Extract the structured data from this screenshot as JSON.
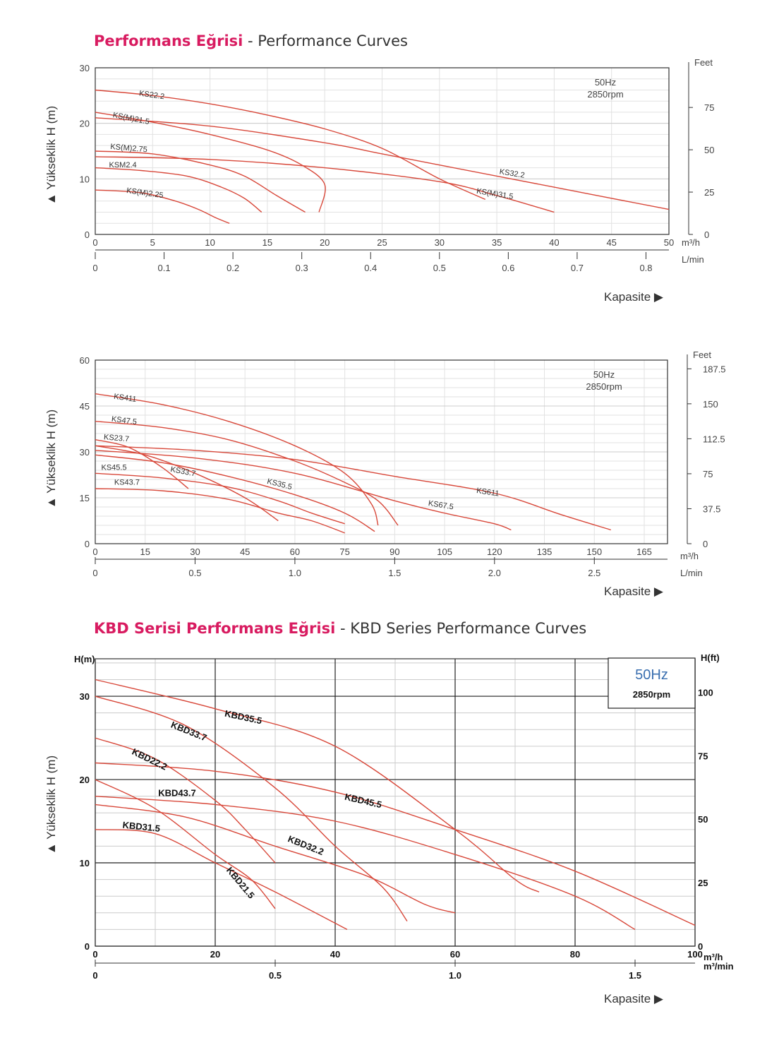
{
  "titles": [
    {
      "tr": "Performans Eğrisi",
      "sep": " - ",
      "en": "Performance Curves"
    },
    {
      "tr": "KBD Serisi Performans Eğrisi",
      "sep": " - ",
      "en": "KBD Series Performance Curves"
    }
  ],
  "kapasite_label": "Kapasite ▶",
  "colors": {
    "curve": "#d8483a",
    "grid": "#cccccc",
    "grid_major": "#222222",
    "accent": "#d81b60",
    "hz_blue": "#3a6fb0"
  },
  "chart_data": [
    {
      "type": "line",
      "ylabel": "▲ Yükseklik H (m)",
      "x_unit": "m³/h",
      "x2_unit": "L/min",
      "y2_unit": "Feet",
      "info": [
        "50Hz",
        "2850rpm"
      ],
      "xlim": [
        0,
        50
      ],
      "ylim": [
        0,
        30
      ],
      "xticks": [
        0,
        5,
        10,
        15,
        20,
        25,
        30,
        35,
        40,
        45,
        50
      ],
      "yticks": [
        0,
        10,
        20,
        30
      ],
      "x2ticks": [
        [
          "0",
          0
        ],
        [
          "0.1",
          6
        ],
        [
          "0.2",
          12
        ],
        [
          "0.3",
          18
        ],
        [
          "0.4",
          24
        ],
        [
          "0.5",
          30
        ],
        [
          "0.6",
          36
        ],
        [
          "0.7",
          42
        ],
        [
          "0.8",
          48
        ]
      ],
      "y2ticks": [
        [
          "0",
          0
        ],
        [
          "25",
          7.62
        ],
        [
          "50",
          15.24
        ],
        [
          "75",
          22.86
        ]
      ],
      "series": [
        {
          "name": "KS22.2",
          "pts": [
            [
              0,
              26
            ],
            [
              5,
              25
            ],
            [
              10,
              23.5
            ],
            [
              15,
              21.5
            ],
            [
              20,
              19
            ],
            [
              25,
              15.5
            ],
            [
              30,
              10
            ],
            [
              34,
              6.3
            ]
          ]
        },
        {
          "name": "KS(M)21.5",
          "pts": [
            [
              0,
              22
            ],
            [
              5,
              20.2
            ],
            [
              10,
              18
            ],
            [
              15,
              15.2
            ],
            [
              18,
              12.5
            ],
            [
              20,
              9
            ],
            [
              19.5,
              4
            ]
          ]
        },
        {
          "name": "KS(M)2.75",
          "pts": [
            [
              0,
              15
            ],
            [
              5,
              14.5
            ],
            [
              10,
              12.5
            ],
            [
              13,
              10.5
            ],
            [
              15.8,
              7
            ],
            [
              18.3,
              4
            ]
          ]
        },
        {
          "name": "KSM2.4",
          "pts": [
            [
              0,
              12
            ],
            [
              4,
              11.5
            ],
            [
              8,
              10.5
            ],
            [
              11,
              8.5
            ],
            [
              13,
              6.5
            ],
            [
              14.5,
              4
            ]
          ]
        },
        {
          "name": "KS(M)2.25",
          "pts": [
            [
              0,
              8
            ],
            [
              4,
              7.5
            ],
            [
              7,
              6
            ],
            [
              9,
              4.5
            ],
            [
              10.5,
              3
            ],
            [
              11.7,
              2
            ]
          ]
        },
        {
          "name": "KS32.2",
          "pts": [
            [
              0,
              21
            ],
            [
              10,
              19.5
            ],
            [
              20,
              16.5
            ],
            [
              25,
              14.5
            ],
            [
              30,
              12.5
            ],
            [
              40,
              8.5
            ],
            [
              50,
              4.5
            ]
          ]
        },
        {
          "name": "KS(M)31.5",
          "pts": [
            [
              0,
              14
            ],
            [
              10,
              13.5
            ],
            [
              20,
              12
            ],
            [
              30,
              9.5
            ],
            [
              35,
              7
            ],
            [
              40,
              4
            ]
          ]
        }
      ],
      "labels": [
        {
          "text": "KS22.2",
          "x": 3.8,
          "y": 25,
          "rot": 8
        },
        {
          "text": "KS(M)21.5",
          "x": 1.5,
          "y": 21.1,
          "rot": 11
        },
        {
          "text": "KS(M)2.75",
          "x": 1.3,
          "y": 15.4,
          "rot": 5
        },
        {
          "text": "KSM2.4",
          "x": 1.2,
          "y": 12.1,
          "rot": 0
        },
        {
          "text": "KS(M)2.25",
          "x": 2.7,
          "y": 7.5,
          "rot": 8
        },
        {
          "text": "KS32.2",
          "x": 35.2,
          "y": 10.9,
          "rot": 9
        },
        {
          "text": "KS(M)31.5",
          "x": 33.2,
          "y": 7.4,
          "rot": 9
        }
      ]
    },
    {
      "type": "line",
      "ylabel": "▲ Yükseklik H (m)",
      "x_unit": "m³/h",
      "x2_unit": "L/min",
      "y2_unit": "Feet",
      "info": [
        "50Hz",
        "2850rpm"
      ],
      "xlim": [
        0,
        172
      ],
      "ylim": [
        0,
        60
      ],
      "xticks": [
        0,
        15,
        30,
        45,
        60,
        75,
        90,
        105,
        120,
        135,
        150,
        165
      ],
      "yticks": [
        0,
        15,
        30,
        45,
        60
      ],
      "x2ticks": [
        [
          "0",
          0
        ],
        [
          "0.5",
          30
        ],
        [
          "1.0",
          60
        ],
        [
          "1.5",
          90
        ],
        [
          "2.0",
          120
        ],
        [
          "2.5",
          150
        ]
      ],
      "y2ticks": [
        [
          "0",
          0
        ],
        [
          "37.5",
          11.43
        ],
        [
          "75",
          22.86
        ],
        [
          "112.5",
          34.29
        ],
        [
          "150",
          45.72
        ],
        [
          "187.5",
          57.15
        ]
      ],
      "series": [
        {
          "name": "KS411",
          "pts": [
            [
              0,
              49
            ],
            [
              20,
              45.5
            ],
            [
              40,
              40
            ],
            [
              60,
              32
            ],
            [
              75,
              23
            ],
            [
              83,
              13
            ],
            [
              85,
              6
            ]
          ]
        },
        {
          "name": "KS47.5",
          "pts": [
            [
              0,
              40
            ],
            [
              20,
              38
            ],
            [
              40,
              34
            ],
            [
              60,
              27
            ],
            [
              75,
              20
            ],
            [
              85,
              14
            ],
            [
              91,
              6
            ]
          ]
        },
        {
          "name": "KS23.7",
          "pts": [
            [
              0,
              34
            ],
            [
              10,
              31.5
            ],
            [
              20,
              25
            ],
            [
              28,
              18
            ]
          ]
        },
        {
          "name": "KS33.7",
          "pts": [
            [
              0,
              32
            ],
            [
              15,
              29
            ],
            [
              30,
              23
            ],
            [
              45,
              15
            ],
            [
              55,
              7.5
            ]
          ]
        },
        {
          "name": "KS35.5",
          "pts": [
            [
              0,
              29
            ],
            [
              20,
              26.5
            ],
            [
              40,
              22
            ],
            [
              60,
              16
            ],
            [
              75,
              10
            ],
            [
              84,
              4
            ]
          ]
        },
        {
          "name": "KS45.5",
          "pts": [
            [
              0,
              23
            ],
            [
              20,
              21.5
            ],
            [
              40,
              18.5
            ],
            [
              55,
              14
            ],
            [
              65,
              10
            ],
            [
              75,
              6.5
            ]
          ]
        },
        {
          "name": "KS43.7",
          "pts": [
            [
              0,
              18
            ],
            [
              20,
              17.3
            ],
            [
              40,
              14.5
            ],
            [
              55,
              10
            ],
            [
              65,
              7.5
            ],
            [
              75,
              3.5
            ]
          ]
        },
        {
          "name": "KS67.5",
          "pts": [
            [
              0,
              30.5
            ],
            [
              30,
              28
            ],
            [
              60,
              23
            ],
            [
              90,
              14
            ],
            [
              105,
              10
            ],
            [
              120,
              6.5
            ],
            [
              125,
              4.5
            ]
          ]
        },
        {
          "name": "KS611",
          "pts": [
            [
              0,
              32
            ],
            [
              30,
              30.5
            ],
            [
              60,
              27.5
            ],
            [
              90,
              22
            ],
            [
              120,
              16.5
            ],
            [
              140,
              9.5
            ],
            [
              155,
              4.5
            ]
          ]
        }
      ],
      "labels": [
        {
          "text": "KS411",
          "x": 5.5,
          "y": 47.4,
          "rot": 8
        },
        {
          "text": "KS47.5",
          "x": 4.8,
          "y": 40,
          "rot": 7
        },
        {
          "text": "KS23.7",
          "x": 2.5,
          "y": 34.1,
          "rot": 5
        },
        {
          "text": "KS45.5",
          "x": 1.8,
          "y": 24.1,
          "rot": 0
        },
        {
          "text": "KS33.7",
          "x": 22.5,
          "y": 23.6,
          "rot": 11
        },
        {
          "text": "KS35.5",
          "x": 51.5,
          "y": 19.7,
          "rot": 14
        },
        {
          "text": "KS43.7",
          "x": 5.7,
          "y": 19.3,
          "rot": 0
        },
        {
          "text": "KS67.5",
          "x": 100,
          "y": 12.5,
          "rot": 9
        },
        {
          "text": "KS611",
          "x": 114.5,
          "y": 16.6,
          "rot": 8
        }
      ]
    },
    {
      "type": "line",
      "ylabel": "▲ Yükseklik H (m)",
      "y_head": "H(m)",
      "y2_unit": "H(ft)",
      "x_unit": "m³/h",
      "x2_unit": "m³/min",
      "info": [
        "50Hz",
        "2850rpm"
      ],
      "xlim": [
        0,
        100
      ],
      "ylim": [
        0,
        34.5
      ],
      "xticks": [
        0,
        20,
        40,
        60,
        80,
        100
      ],
      "yticks": [
        0,
        10,
        20,
        30
      ],
      "x2ticks": [
        [
          "0",
          0
        ],
        [
          "0.5",
          30
        ],
        [
          "1.0",
          60
        ],
        [
          "1.5",
          90
        ]
      ],
      "y2ticks": [
        [
          "0",
          0
        ],
        [
          "25",
          7.62
        ],
        [
          "50",
          15.24
        ],
        [
          "75",
          22.86
        ],
        [
          "100",
          30.48
        ]
      ],
      "series": [
        {
          "name": "KBD35.5",
          "pts": [
            [
              0,
              32
            ],
            [
              20,
              28.5
            ],
            [
              40,
              24
            ],
            [
              60,
              14
            ],
            [
              70,
              8
            ],
            [
              74,
              6.5
            ]
          ]
        },
        {
          "name": "KBD33.7",
          "pts": [
            [
              0,
              30
            ],
            [
              15,
              26.5
            ],
            [
              30,
              19
            ],
            [
              40,
              12
            ],
            [
              48,
              7
            ],
            [
              52,
              3
            ]
          ]
        },
        {
          "name": "KBD22.2",
          "pts": [
            [
              0,
              25
            ],
            [
              10,
              22.5
            ],
            [
              20,
              17.5
            ],
            [
              25,
              14
            ],
            [
              30,
              10
            ]
          ]
        },
        {
          "name": "KBD45.5",
          "pts": [
            [
              0,
              22
            ],
            [
              20,
              21
            ],
            [
              40,
              18.5
            ],
            [
              60,
              14
            ],
            [
              80,
              9
            ],
            [
              100,
              2.5
            ]
          ]
        },
        {
          "name": "KBD43.7",
          "pts": [
            [
              0,
              18
            ],
            [
              20,
              17
            ],
            [
              40,
              15
            ],
            [
              60,
              11
            ],
            [
              80,
              6
            ],
            [
              90,
              2
            ]
          ]
        },
        {
          "name": "KBD32.2",
          "pts": [
            [
              0,
              17
            ],
            [
              15,
              15.5
            ],
            [
              30,
              12
            ],
            [
              45,
              8.5
            ],
            [
              55,
              5
            ],
            [
              60,
              4
            ]
          ]
        },
        {
          "name": "KBD21.5",
          "pts": [
            [
              0,
              20
            ],
            [
              10,
              16.5
            ],
            [
              20,
              11
            ],
            [
              26,
              8
            ],
            [
              30,
              4.5
            ]
          ]
        },
        {
          "name": "KBD31.5",
          "pts": [
            [
              0,
              14
            ],
            [
              10,
              13.5
            ],
            [
              20,
              10
            ],
            [
              30,
              6.5
            ],
            [
              42,
              2
            ]
          ]
        }
      ],
      "labels": [
        {
          "text": "KBD35.5",
          "x": 21.5,
          "y": 27.6,
          "rot": 12
        },
        {
          "text": "KBD33.7",
          "x": 12.5,
          "y": 26.3,
          "rot": 22
        },
        {
          "text": "KBD22.2",
          "x": 6,
          "y": 23.1,
          "rot": 26
        },
        {
          "text": "KBD45.5",
          "x": 41.5,
          "y": 17.6,
          "rot": 13
        },
        {
          "text": "KBD43.7",
          "x": 10.5,
          "y": 18,
          "rot": 0
        },
        {
          "text": "KBD31.5",
          "x": 4.5,
          "y": 14.2,
          "rot": 6
        },
        {
          "text": "KBD32.2",
          "x": 32,
          "y": 12.6,
          "rot": 22
        },
        {
          "text": "KBD21.5",
          "x": 21.8,
          "y": 9.1,
          "rot": 50
        }
      ]
    }
  ]
}
